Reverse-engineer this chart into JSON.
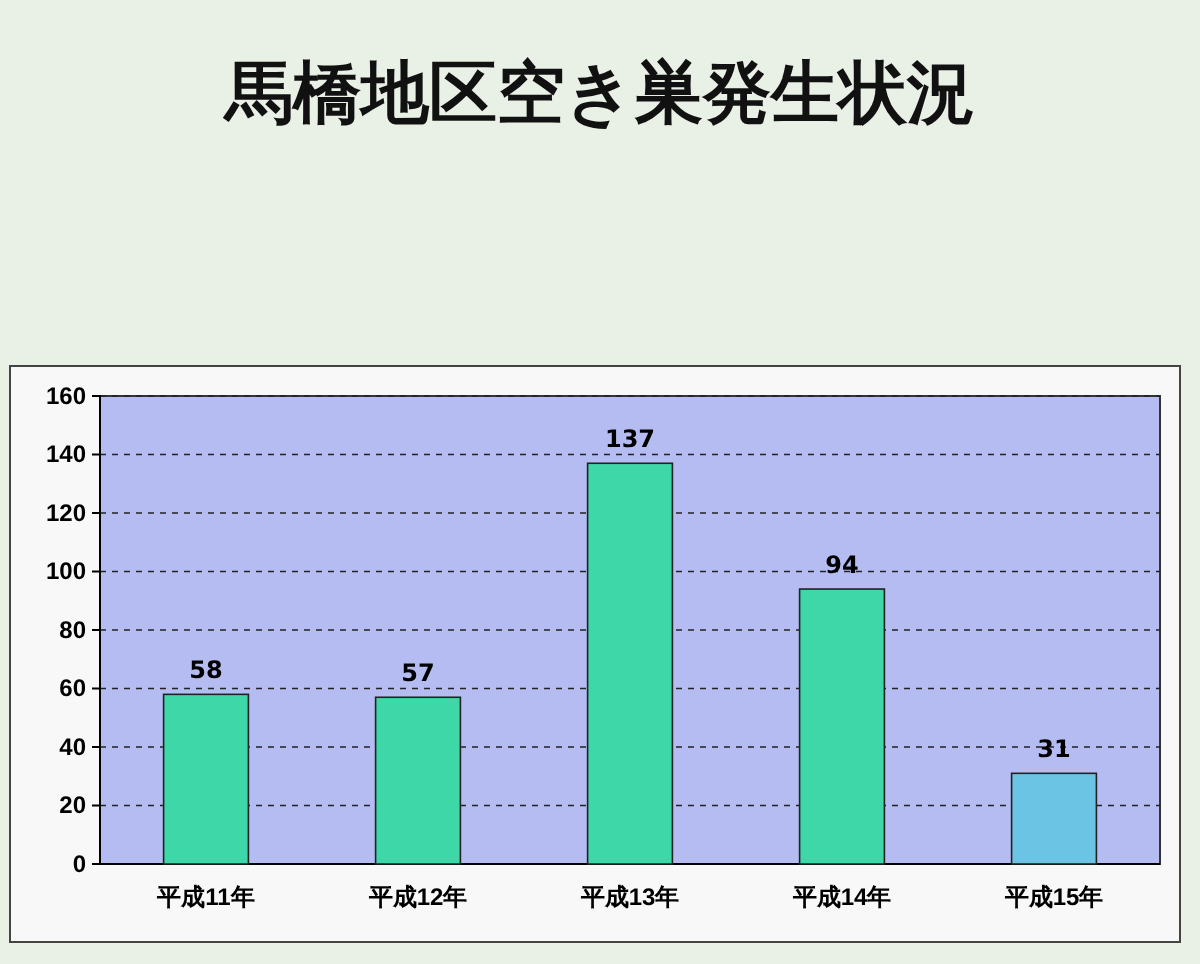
{
  "chart_data": {
    "type": "bar",
    "title": "馬橋地区空き巣発生状況",
    "categories": [
      "平成11年",
      "平成12年",
      "平成13年",
      "平成14年",
      "平成15年"
    ],
    "values": [
      58,
      57,
      137,
      94,
      31
    ],
    "colors": [
      "#3ed8a8",
      "#3ed8a8",
      "#3ed8a8",
      "#3ed8a8",
      "#6cc4e4"
    ],
    "ylim": [
      0,
      160
    ],
    "yticks": [
      0,
      20,
      40,
      60,
      80,
      100,
      120,
      140,
      160
    ],
    "grid": "y",
    "data_labels": true
  }
}
